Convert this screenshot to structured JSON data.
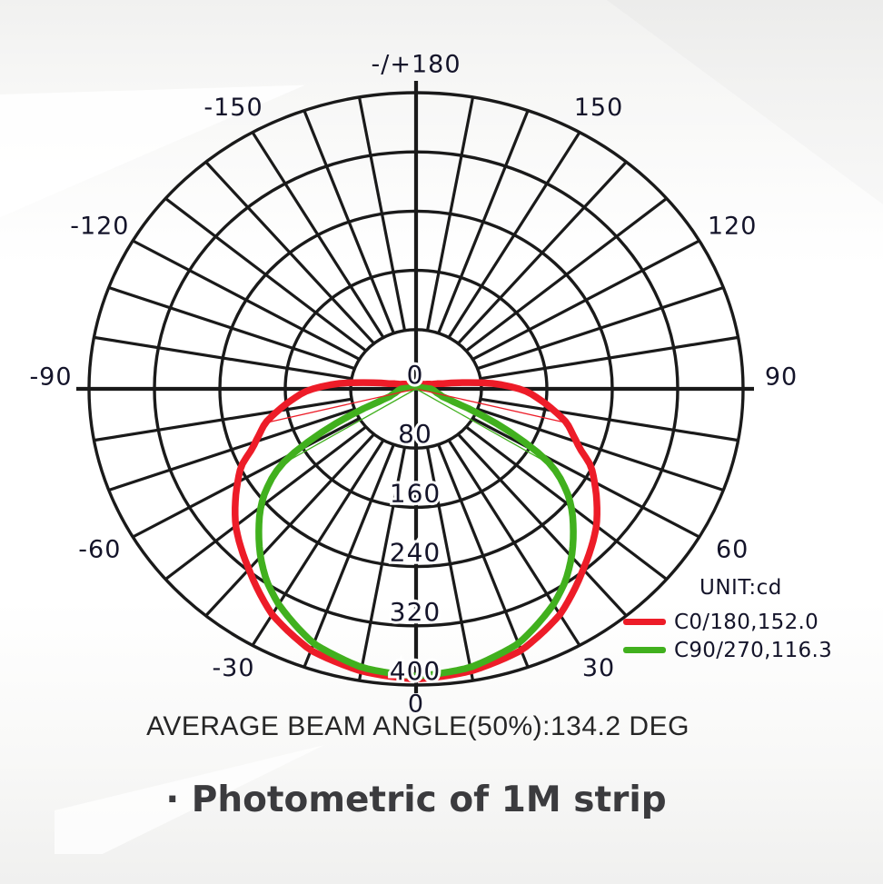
{
  "page": {
    "caption": "· Photometric of 1M strip",
    "average_beam_angle_text": "AVERAGE BEAM ANGLE(50%):134.2 DEG"
  },
  "legend": {
    "unit_label": "UNIT:cd",
    "items": [
      {
        "label": "C0/180,152.0",
        "color": "#ed1c28"
      },
      {
        "label": "C90/270,116.3",
        "color": "#41b01e"
      }
    ]
  },
  "chart_data": {
    "type": "line",
    "polar": true,
    "title": "Photometric of 1M strip",
    "unit": "cd",
    "orientation": "0 deg at bottom (nadir); angles increase clockwise to +180 at top; negative angles on the left; curves symmetric (mirrored)",
    "radial_axis": {
      "min": 0,
      "max": 400,
      "ticks": [
        0,
        80,
        160,
        240,
        320,
        400
      ]
    },
    "angle_labels": [
      {
        "angle": 180,
        "label": "-/+180"
      },
      {
        "angle": -150,
        "label": "-150"
      },
      {
        "angle": 150,
        "label": "150"
      },
      {
        "angle": -120,
        "label": "-120"
      },
      {
        "angle": 120,
        "label": "120"
      },
      {
        "angle": -90,
        "label": "-90"
      },
      {
        "angle": 90,
        "label": "90"
      },
      {
        "angle": -60,
        "label": "-60"
      },
      {
        "angle": 60,
        "label": "60"
      },
      {
        "angle": -30,
        "label": "-30"
      },
      {
        "angle": 30,
        "label": "30"
      },
      {
        "angle": 0,
        "label": "0"
      }
    ],
    "grid": {
      "rings": 5,
      "spoke_step_deg": 10
    },
    "series": [
      {
        "name": "C0/180,152.0",
        "plane": "C0/180",
        "beam_angle_deg": 152.0,
        "color": "#ed1c28",
        "symmetric_mirror": true,
        "points_deg_cd": [
          [
            0,
            392
          ],
          [
            10,
            387
          ],
          [
            20,
            376
          ],
          [
            30,
            352
          ],
          [
            40,
            318
          ],
          [
            50,
            288
          ],
          [
            55,
            270
          ],
          [
            60,
            252
          ],
          [
            64,
            238
          ],
          [
            68,
            216
          ],
          [
            72,
            202
          ],
          [
            76,
            190
          ],
          [
            80,
            172
          ],
          [
            85,
            150
          ],
          [
            88,
            138
          ],
          [
            90,
            126
          ],
          [
            92,
            112
          ],
          [
            95,
            90
          ],
          [
            98,
            60
          ],
          [
            102,
            34
          ],
          [
            108,
            20
          ],
          [
            120,
            12
          ],
          [
            140,
            8
          ],
          [
            160,
            6
          ],
          [
            180,
            5
          ]
        ]
      },
      {
        "name": "C90/270,116.3",
        "plane": "C90/270",
        "beam_angle_deg": 116.3,
        "color": "#41b01e",
        "symmetric_mirror": true,
        "points_deg_cd": [
          [
            0,
            388
          ],
          [
            10,
            382
          ],
          [
            20,
            366
          ],
          [
            30,
            336
          ],
          [
            35,
            318
          ],
          [
            40,
            296
          ],
          [
            45,
            272
          ],
          [
            49,
            253
          ],
          [
            52,
            237
          ],
          [
            55,
            218
          ],
          [
            58,
            196
          ],
          [
            60,
            172
          ],
          [
            63,
            130
          ],
          [
            66,
            88
          ],
          [
            69,
            50
          ],
          [
            72,
            34
          ],
          [
            78,
            26
          ],
          [
            84,
            22
          ],
          [
            90,
            18
          ],
          [
            95,
            10
          ],
          [
            110,
            5
          ],
          [
            140,
            3
          ],
          [
            180,
            3
          ]
        ]
      }
    ],
    "beam_angle_indicator_lines": [
      {
        "series": "C0/180",
        "color": "#ed1c28",
        "half_angle_deg": 76.0,
        "radius_cd": 192
      },
      {
        "series": "C90/270",
        "color": "#41b01e",
        "half_angle_deg": 58.15,
        "radius_cd": 194
      }
    ],
    "annotations": [
      "AVERAGE BEAM ANGLE(50%):134.2 DEG"
    ],
    "legend_position": "right-bottom inside plot area"
  }
}
